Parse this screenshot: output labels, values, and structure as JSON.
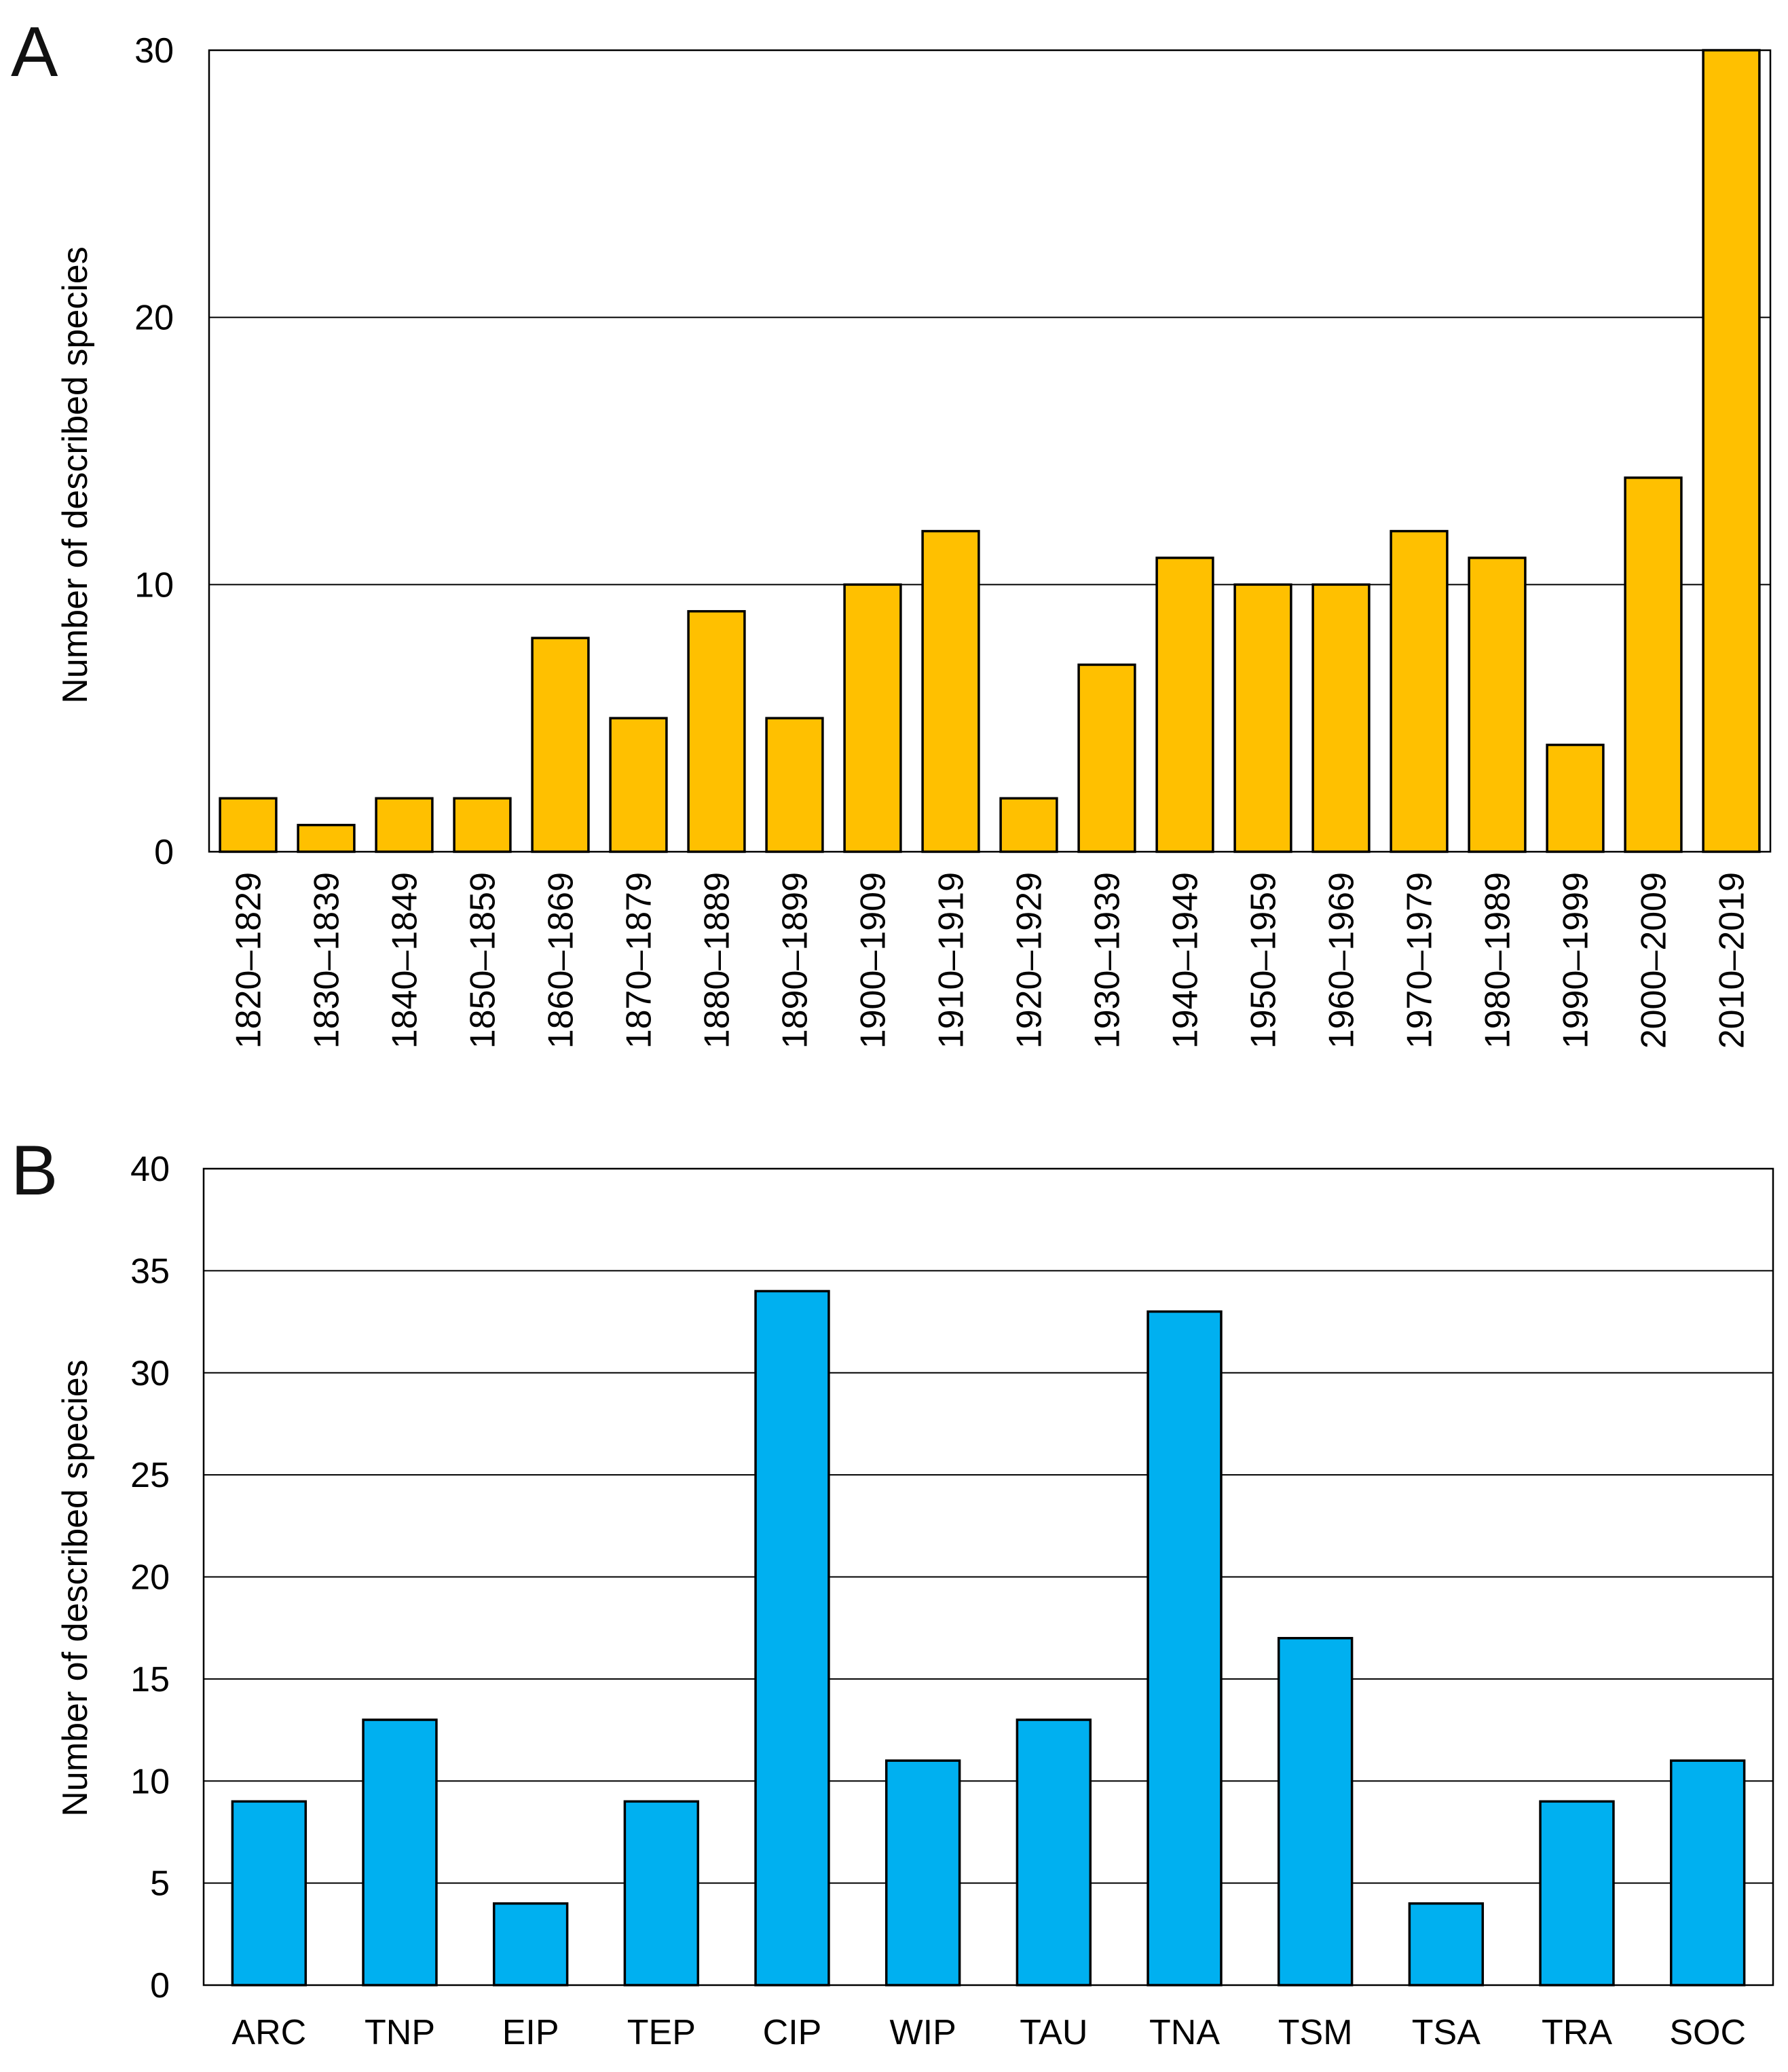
{
  "chart_data": [
    {
      "panel": "A",
      "type": "bar",
      "ylabel": "Number of described species",
      "ylim": [
        0,
        30
      ],
      "yticks": [
        0,
        10,
        20,
        30
      ],
      "grid": true,
      "bar_color": "#FFC000",
      "categories": [
        "1820–1829",
        "1830–1839",
        "1840–1849",
        "1850–1859",
        "1860–1869",
        "1870–1879",
        "1880–1889",
        "1890–1899",
        "1900–1909",
        "1910–1919",
        "1920–1929",
        "1930–1939",
        "1940–1949",
        "1950–1959",
        "1960–1969",
        "1970–1979",
        "1980–1989",
        "1990–1999",
        "2000–2009",
        "2010–2019"
      ],
      "values": [
        2,
        1,
        2,
        2,
        8,
        5,
        9,
        5,
        10,
        12,
        2,
        7,
        11,
        10,
        10,
        12,
        11,
        4,
        14,
        30
      ]
    },
    {
      "panel": "B",
      "type": "bar",
      "ylabel": "Number of described species",
      "ylim": [
        0,
        40
      ],
      "yticks": [
        0,
        5,
        10,
        15,
        20,
        25,
        30,
        35,
        40
      ],
      "grid": true,
      "bar_color": "#00B0F0",
      "categories": [
        "ARC",
        "TNP",
        "EIP",
        "TEP",
        "CIP",
        "WIP",
        "TAU",
        "TNA",
        "TSM",
        "TSA",
        "TRA",
        "SOC"
      ],
      "values": [
        9,
        13,
        4,
        9,
        34,
        11,
        13,
        33,
        17,
        4,
        9,
        11
      ]
    }
  ]
}
